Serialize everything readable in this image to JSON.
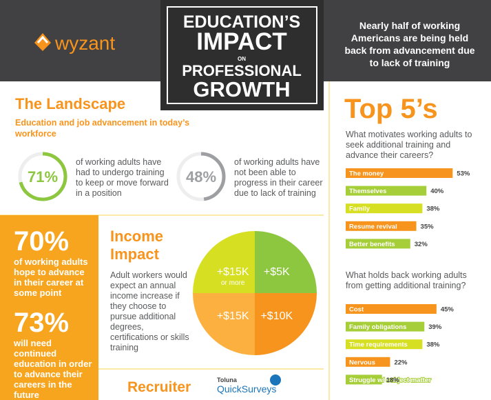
{
  "header": {
    "brand": "wyzant",
    "title_lines": [
      "EDUCATION’S",
      "IMPACT",
      "ON",
      "PROFESSIONAL",
      "GROWTH"
    ],
    "tagline": "Nearly half of working Americans are being held back from advancement due to lack of training"
  },
  "landscape": {
    "title": "The Landscape",
    "subtitle": "Education and job advancement in today’s workforce",
    "stats": [
      {
        "value": 71,
        "label": "71%",
        "text": "of working adults have had to undergo training to keep or move forward in a position",
        "color": "#8dc63f"
      },
      {
        "value": 48,
        "label": "48%",
        "text": "of working adults have not been able to progress in their career due to lack of training",
        "color": "#9d9fa2"
      }
    ]
  },
  "highlights": [
    {
      "figure": "70%",
      "text": "of working adults hope to advance in their career at some point"
    },
    {
      "figure": "73%",
      "text": "will need continued education in order to advance their careers in the future"
    }
  ],
  "income": {
    "title_lines": [
      "Income",
      "Impact"
    ],
    "text": "Adult workers would expect an annual income increase if they choose to pursue additional degrees, certifications or skills training"
  },
  "top5_title": "Top 5’s",
  "sponsors": [
    "Recruiter",
    "Toluna",
    "QuickSurveys"
  ],
  "chart_data": [
    {
      "type": "bar",
      "title": "What motivates working adults to seek additional training and advance their careers?",
      "categories": [
        "The money",
        "Themselves",
        "Family",
        "Resume revival",
        "Better benefits"
      ],
      "values": [
        53,
        40,
        38,
        35,
        32
      ],
      "value_labels": [
        "53%",
        "40%",
        "38%",
        "35%",
        "32%"
      ],
      "colors": [
        "#f7941d",
        "#a6ce39",
        "#d7df23",
        "#f7941d",
        "#a6ce39"
      ]
    },
    {
      "type": "bar",
      "title": "What holds back working adults from getting additional training?",
      "categories": [
        "Cost",
        "Family obligations",
        "Time requirements",
        "Nervous",
        "Struggle w/ subject matter"
      ],
      "values": [
        45,
        39,
        38,
        22,
        18
      ],
      "value_labels": [
        "45%",
        "39%",
        "38%",
        "22%",
        "18%"
      ],
      "colors": [
        "#f7941d",
        "#a6ce39",
        "#d7df23",
        "#f7941d",
        "#a6ce39"
      ]
    },
    {
      "type": "pie",
      "categories": [
        "+$5K",
        "+$10K",
        "+$15K",
        "+$15K"
      ],
      "annotation": "or more",
      "values": [
        25,
        25,
        25,
        25
      ],
      "colors": [
        "#8dc63f",
        "#f7941d",
        "#fbb040",
        "#d7df23"
      ]
    }
  ]
}
